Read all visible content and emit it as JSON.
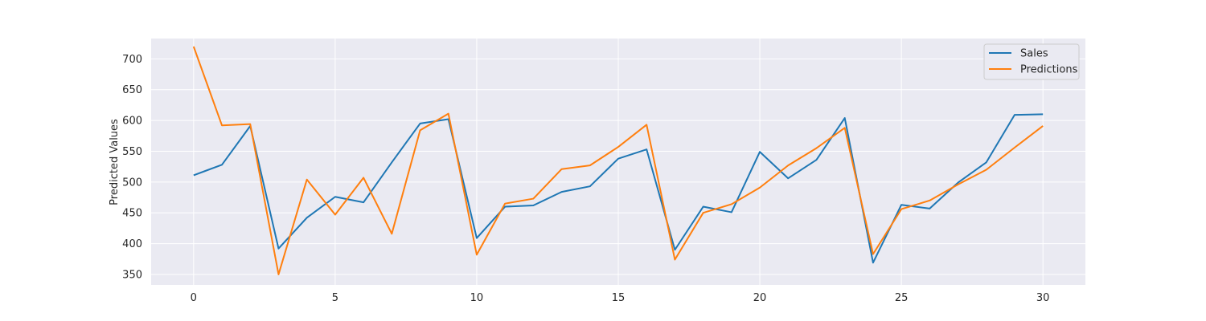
{
  "chart_data": {
    "type": "line",
    "title": "",
    "xlabel": "",
    "ylabel": "Predicted Values",
    "x": [
      0,
      1,
      2,
      3,
      4,
      5,
      6,
      7,
      8,
      9,
      10,
      11,
      12,
      13,
      14,
      15,
      16,
      17,
      18,
      19,
      20,
      21,
      22,
      23,
      24,
      25,
      26,
      27,
      28,
      29,
      30
    ],
    "xlim": [
      -1.5,
      31.5
    ],
    "ylim": [
      333,
      733
    ],
    "xticks": [
      0,
      5,
      10,
      15,
      20,
      25,
      30
    ],
    "yticks": [
      350,
      400,
      450,
      500,
      550,
      600,
      650,
      700
    ],
    "grid": true,
    "legend_position": "top-right",
    "series": [
      {
        "name": "Sales",
        "color": "#1f77b4",
        "values": [
          511,
          528,
          591,
          392,
          442,
          476,
          467,
          532,
          595,
          602,
          409,
          460,
          462,
          484,
          493,
          538,
          553,
          390,
          460,
          451,
          549,
          506,
          536,
          604,
          369,
          463,
          457,
          499,
          532,
          609,
          610
        ]
      },
      {
        "name": "Predictions",
        "color": "#ff7f0e",
        "values": [
          720,
          592,
          594,
          350,
          504,
          447,
          507,
          416,
          584,
          611,
          382,
          465,
          473,
          521,
          527,
          557,
          593,
          374,
          450,
          464,
          491,
          527,
          555,
          588,
          383,
          456,
          470,
          496,
          520,
          556,
          591
        ]
      }
    ]
  }
}
